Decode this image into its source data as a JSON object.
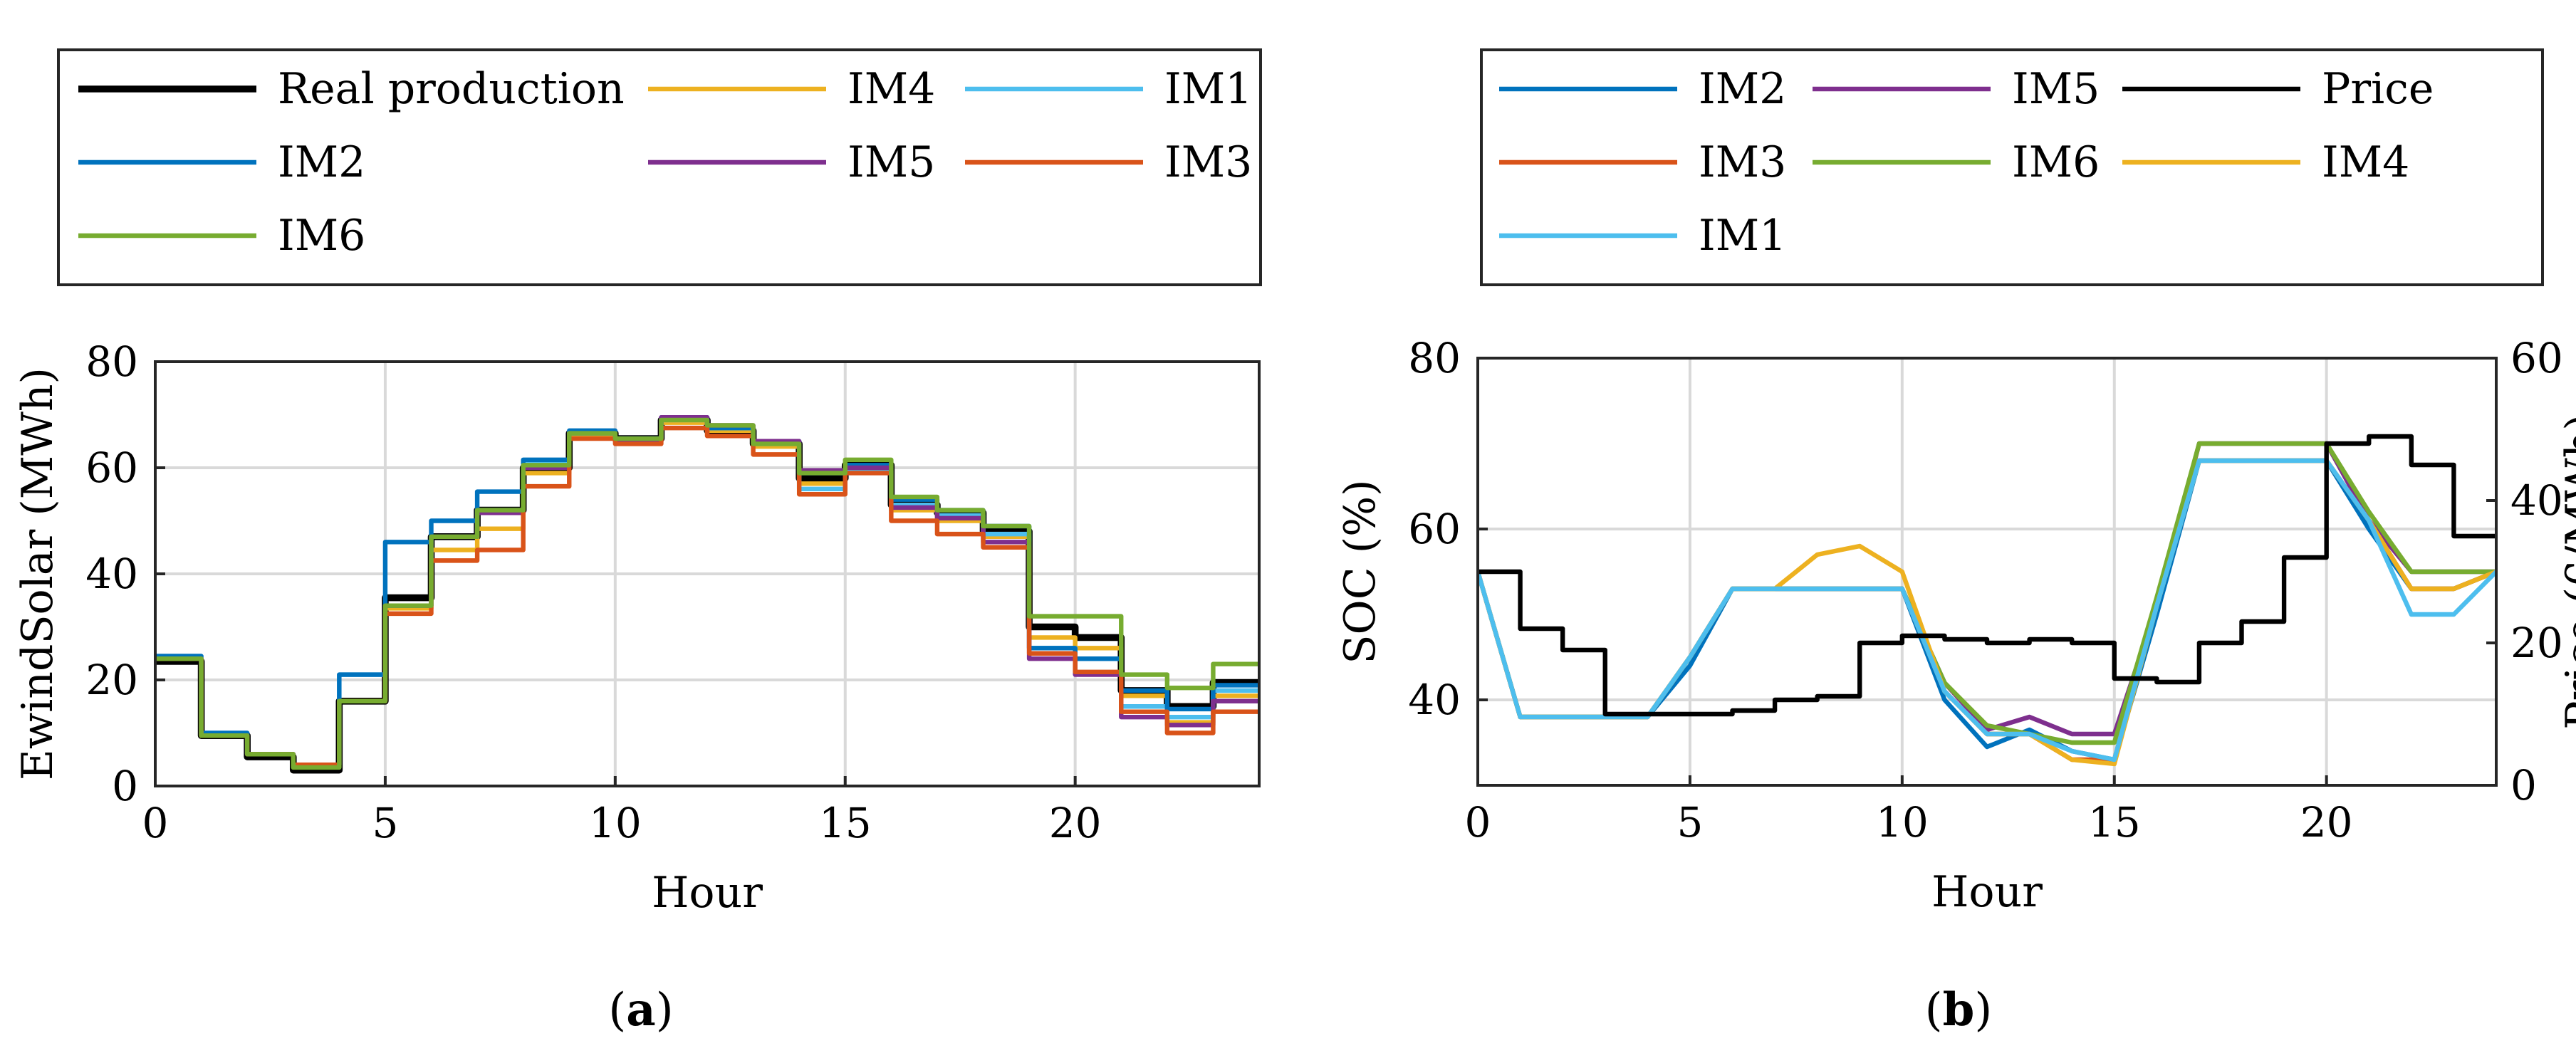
{
  "figure": {
    "panels": [
      {
        "caption_prefix": "(",
        "caption_letter": "a",
        "caption_suffix": ")"
      },
      {
        "caption_prefix": "(",
        "caption_letter": "b",
        "caption_suffix": ")"
      }
    ]
  },
  "chart_data": [
    {
      "type": "line",
      "step": true,
      "title": "",
      "xlabel": "Hour",
      "ylabel": "EwindSolar (MWh)",
      "xlim": [
        0,
        24
      ],
      "ylim": [
        0,
        80
      ],
      "xticks": [
        0,
        5,
        10,
        15,
        20
      ],
      "yticks": [
        0,
        20,
        40,
        60,
        80
      ],
      "grid": true,
      "legend": {
        "placement": "above",
        "columns": 3,
        "order": [
          "Real production",
          "IM4",
          "IM1",
          "IM2",
          "IM5",
          "IM3",
          "IM6"
        ]
      },
      "x": [
        0,
        1,
        2,
        3,
        4,
        5,
        6,
        7,
        8,
        9,
        10,
        11,
        12,
        13,
        14,
        15,
        16,
        17,
        18,
        19,
        20,
        21,
        22,
        23,
        24
      ],
      "series": [
        {
          "name": "Real production",
          "color": "#000000",
          "width": 3,
          "values": [
            23.5,
            9.5,
            5.5,
            3,
            16,
            35.5,
            47,
            52,
            60,
            66.5,
            65.5,
            69,
            67,
            64.5,
            58,
            60.5,
            53,
            51.5,
            48,
            30,
            28,
            18,
            15,
            19.5,
            19.5
          ]
        },
        {
          "name": "IM4",
          "color": "#EDB120",
          "width": 2,
          "values": [
            24,
            9.5,
            6,
            4,
            16,
            33.5,
            44.5,
            48.5,
            59,
            66,
            65,
            68.5,
            67,
            64,
            57,
            59.5,
            52,
            50,
            47,
            28,
            26,
            17,
            12,
            17,
            17
          ]
        },
        {
          "name": "IM1",
          "color": "#4DBEEE",
          "width": 2,
          "values": [
            24,
            9.5,
            6,
            4,
            21,
            34,
            47,
            52,
            61,
            66.5,
            65.5,
            69,
            67.5,
            64.5,
            56,
            59.5,
            53,
            51,
            47.5,
            26,
            24,
            15,
            13,
            18,
            18
          ]
        },
        {
          "name": "IM2",
          "color": "#0072BD",
          "width": 2,
          "values": [
            24.5,
            10,
            6,
            4,
            21,
            46,
            50,
            55.5,
            61.5,
            67,
            65.5,
            69.5,
            67.5,
            65,
            59,
            60.5,
            54,
            52,
            49,
            26,
            24,
            18,
            14.5,
            19,
            19
          ]
        },
        {
          "name": "IM5",
          "color": "#7E2F8E",
          "width": 2,
          "values": [
            24,
            9.5,
            6,
            4,
            16,
            34,
            47,
            51.5,
            60,
            66.5,
            65,
            69.5,
            68,
            65,
            59.5,
            60,
            52.5,
            50.5,
            46,
            24,
            21,
            13,
            11.5,
            16,
            16
          ]
        },
        {
          "name": "IM3",
          "color": "#D95319",
          "width": 2,
          "values": [
            24,
            9.5,
            6,
            4,
            16,
            32.5,
            42.5,
            44.5,
            56.5,
            65.5,
            64.5,
            67.5,
            66,
            62.5,
            55,
            59,
            50,
            47.5,
            45,
            25,
            21.5,
            14,
            10,
            14,
            14
          ]
        },
        {
          "name": "IM6",
          "color": "#77AC30",
          "width": 2,
          "values": [
            24,
            9.5,
            6,
            3.5,
            16,
            34,
            47,
            52,
            60.5,
            66.5,
            65.5,
            69,
            68,
            64.5,
            59,
            61.5,
            54.5,
            52,
            49,
            32,
            32,
            21,
            18.5,
            23,
            23
          ]
        }
      ]
    },
    {
      "type": "line",
      "title": "",
      "xlabel": "Hour",
      "ylabel": "SOC (%)",
      "ylabel_right": "Price (€/MWh)",
      "xlim": [
        0,
        24
      ],
      "ylim": [
        30,
        80
      ],
      "ylim_right": [
        0,
        60
      ],
      "xticks": [
        0,
        5,
        10,
        15,
        20
      ],
      "yticks": [
        40,
        60,
        80
      ],
      "yticks_right": [
        0,
        20,
        40,
        60
      ],
      "grid": true,
      "legend": {
        "placement": "above",
        "columns": 3,
        "order": [
          "IM2",
          "IM5",
          "Price",
          "IM3",
          "IM6",
          "IM4",
          "IM1"
        ]
      },
      "x": [
        0,
        1,
        2,
        3,
        4,
        5,
        6,
        7,
        8,
        9,
        10,
        11,
        12,
        13,
        14,
        15,
        16,
        17,
        18,
        19,
        20,
        21,
        22,
        23,
        24
      ],
      "series": [
        {
          "name": "IM2",
          "axis": "left",
          "color": "#0072BD",
          "width": 2,
          "values": [
            55,
            38,
            38,
            38,
            38,
            44,
            53,
            53,
            53,
            53,
            53,
            40,
            34.5,
            36.5,
            34,
            33,
            50,
            68,
            68,
            68,
            68,
            60,
            53,
            53,
            55
          ]
        },
        {
          "name": "IM5",
          "axis": "left",
          "color": "#7E2F8E",
          "width": 2,
          "values": [
            55,
            38,
            38,
            38,
            38,
            45,
            53,
            53,
            53,
            53,
            53,
            42,
            36.5,
            38,
            36,
            36,
            51,
            70,
            70,
            70,
            70,
            61,
            55,
            55,
            55
          ]
        },
        {
          "name": "IM3",
          "axis": "left",
          "color": "#D95319",
          "width": 2,
          "values": [
            55,
            38,
            38,
            38,
            38,
            45,
            53,
            53,
            53,
            53,
            53,
            41,
            36,
            36,
            33,
            33,
            51,
            68,
            68,
            68,
            68,
            61,
            53,
            53,
            55
          ]
        },
        {
          "name": "IM6",
          "axis": "left",
          "color": "#77AC30",
          "width": 2,
          "values": [
            55,
            38,
            38,
            38,
            38,
            45,
            53,
            53,
            53,
            53,
            53,
            42,
            37,
            36,
            35,
            35,
            52,
            70,
            70,
            70,
            70,
            62,
            55,
            55,
            55
          ]
        },
        {
          "name": "IM4",
          "axis": "left",
          "color": "#EDB120",
          "width": 2,
          "values": [
            55,
            38,
            38,
            38,
            38,
            45,
            53,
            53,
            57,
            58,
            55,
            41,
            36,
            36,
            33,
            32.5,
            51,
            68,
            68,
            68,
            68,
            61,
            53,
            53,
            55
          ]
        },
        {
          "name": "IM1",
          "axis": "left",
          "color": "#4DBEEE",
          "width": 2,
          "values": [
            55,
            38,
            38,
            38,
            38,
            45,
            53,
            53,
            53,
            53,
            53,
            41,
            36,
            36,
            34,
            33,
            51,
            68,
            68,
            68,
            68,
            61,
            50,
            50,
            55
          ]
        },
        {
          "name": "Price",
          "axis": "right",
          "step": true,
          "color": "#000000",
          "width": 2,
          "values": [
            30,
            22,
            19,
            10,
            10,
            10,
            10.5,
            12,
            12.5,
            20,
            21,
            20.5,
            20,
            20.5,
            20,
            15,
            14.5,
            20,
            23,
            32,
            48,
            49,
            45,
            35,
            35
          ]
        }
      ]
    }
  ]
}
